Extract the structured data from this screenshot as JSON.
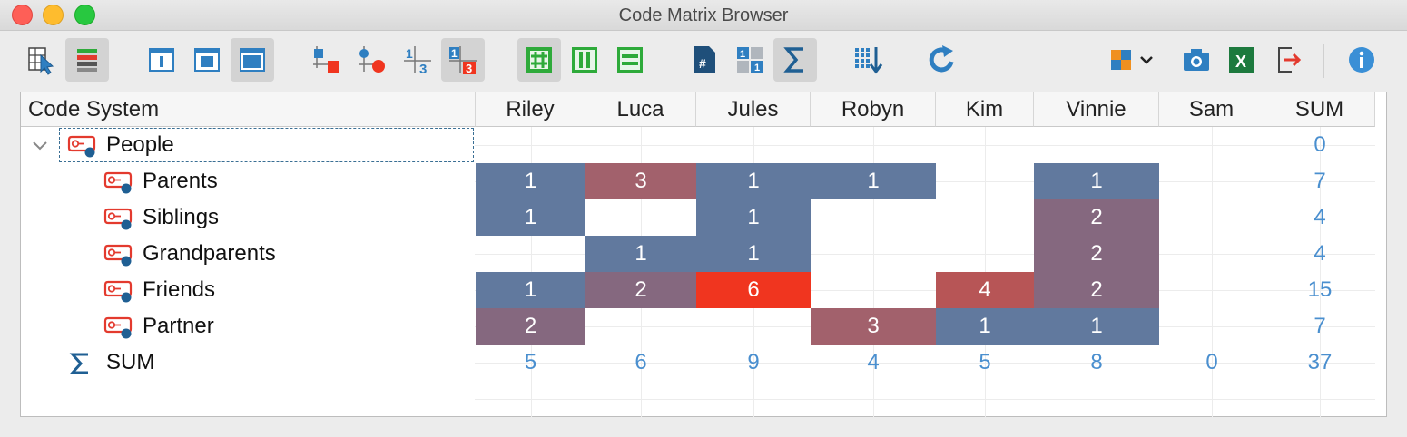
{
  "window": {
    "title": "Code Matrix Browser"
  },
  "toolbar": {
    "buttons": [
      {
        "name": "select-cells-icon"
      },
      {
        "name": "heatmap-rows-icon"
      },
      {
        "name": "view-frame-1-icon"
      },
      {
        "name": "view-frame-2-icon"
      },
      {
        "name": "view-frame-3-icon"
      },
      {
        "name": "symbol-square-icon"
      },
      {
        "name": "symbol-circle-icon"
      },
      {
        "name": "symbol-numbers-icon"
      },
      {
        "name": "symbol-numbers-highlight-icon"
      },
      {
        "name": "heatmap-all-icon"
      },
      {
        "name": "heatmap-columns-icon"
      },
      {
        "name": "heatmap-rows-icon"
      },
      {
        "name": "document-count-icon"
      },
      {
        "name": "binary-icon"
      },
      {
        "name": "sum-icon"
      },
      {
        "name": "sort-icon"
      },
      {
        "name": "refresh-icon"
      },
      {
        "name": "export-options-icon"
      },
      {
        "name": "camera-icon"
      },
      {
        "name": "excel-icon"
      },
      {
        "name": "export-icon"
      },
      {
        "name": "info-icon"
      }
    ],
    "excel_label": "X",
    "doc_label": "#"
  },
  "matrix": {
    "code_system_header": "Code System",
    "columns": [
      "Riley",
      "Luca",
      "Jules",
      "Robyn",
      "Kim",
      "Vinnie",
      "Sam"
    ],
    "sum_header": "SUM",
    "root": {
      "label": "People",
      "sum": "0"
    },
    "rows": [
      {
        "label": "Parents",
        "values": [
          "1",
          "3",
          "1",
          "1",
          "",
          "1",
          ""
        ],
        "sum": "7"
      },
      {
        "label": "Siblings",
        "values": [
          "1",
          "",
          "1",
          "",
          "",
          "2",
          ""
        ],
        "sum": "4"
      },
      {
        "label": "Grandparents",
        "values": [
          "",
          "1",
          "1",
          "",
          "",
          "2",
          ""
        ],
        "sum": "4"
      },
      {
        "label": "Friends",
        "values": [
          "1",
          "2",
          "6",
          "",
          "4",
          "2",
          ""
        ],
        "sum": "15"
      },
      {
        "label": "Partner",
        "values": [
          "2",
          "",
          "",
          "3",
          "1",
          "1",
          ""
        ],
        "sum": "7"
      }
    ],
    "sum_row": {
      "label": "SUM",
      "values": [
        "5",
        "6",
        "9",
        "4",
        "5",
        "8",
        "0"
      ],
      "total": "37"
    },
    "colors": {
      "1": "#61799e",
      "2": "#85687f",
      "3": "#a2616c",
      "4": "#b75556",
      "6": "#f0351f",
      "sum_text": "#4a8fcf"
    }
  }
}
